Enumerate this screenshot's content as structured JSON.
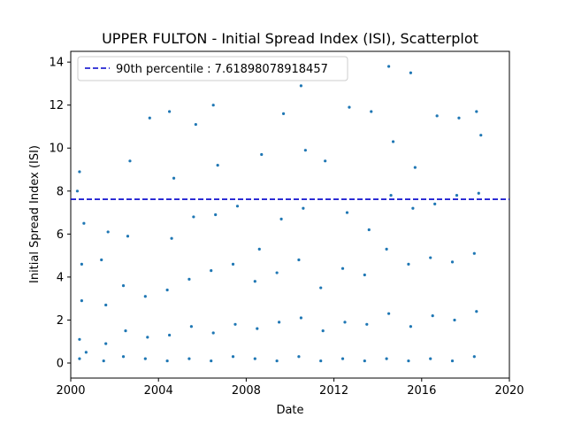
{
  "chart_data": {
    "type": "scatter",
    "title": "UPPER FULTON - Initial Spread Index (ISI), Scatterplot",
    "xlabel": "Date",
    "ylabel": "Initial Spread Index (ISI)",
    "xlim": [
      2000,
      2020
    ],
    "ylim": [
      -0.7,
      14.5
    ],
    "xticks": [
      "2000",
      "2004",
      "2008",
      "2012",
      "2016",
      "2020"
    ],
    "yticks": [
      "0",
      "2",
      "4",
      "6",
      "8",
      "10",
      "12",
      "14"
    ],
    "grid": false,
    "legend_position": "top-left",
    "point_color": "#1f77b4",
    "reference_line": {
      "label": "90th percentile : 7.61898078918457",
      "value": 7.61898078918457,
      "color": "#0000cc",
      "style": "dashed"
    },
    "series": [
      {
        "x": [
          2000.4,
          2000.4,
          2000.5,
          2000.5,
          2000.6,
          2000.3,
          2000.7,
          2000.4,
          2001.5,
          2001.6,
          2001.6,
          2001.4,
          2001.7,
          2002.4,
          2002.5,
          2002.4,
          2002.6,
          2002.7,
          2003.4,
          2003.5,
          2003.4,
          2003.6,
          2004.4,
          2004.5,
          2004.4,
          2004.6,
          2004.7,
          2004.5,
          2005.4,
          2005.5,
          2005.4,
          2005.6,
          2005.7,
          2006.4,
          2006.5,
          2006.4,
          2006.6,
          2006.7,
          2006.5,
          2007.4,
          2007.5,
          2007.4,
          2007.6,
          2008.4,
          2008.5,
          2008.4,
          2008.6,
          2008.7,
          2009.4,
          2009.5,
          2009.4,
          2009.6,
          2009.7,
          2010.4,
          2010.5,
          2010.4,
          2010.6,
          2010.7,
          2010.5,
          2011.4,
          2011.5,
          2011.4,
          2011.6,
          2012.4,
          2012.5,
          2012.4,
          2012.6,
          2012.7,
          2013.4,
          2013.5,
          2013.4,
          2013.6,
          2013.7,
          2014.4,
          2014.5,
          2014.4,
          2014.6,
          2014.7,
          2014.5,
          2015.4,
          2015.5,
          2015.4,
          2015.6,
          2015.7,
          2015.5,
          2016.4,
          2016.5,
          2016.4,
          2016.6,
          2016.7,
          2017.4,
          2017.5,
          2017.4,
          2017.6,
          2017.7,
          2018.4,
          2018.5,
          2018.4,
          2018.6,
          2018.7,
          2018.5
        ],
        "y": [
          0.2,
          1.1,
          2.9,
          4.6,
          6.5,
          8.0,
          0.5,
          8.9,
          0.1,
          0.9,
          2.7,
          4.8,
          6.1,
          0.3,
          1.5,
          3.6,
          5.9,
          9.4,
          0.2,
          1.2,
          3.1,
          11.4,
          0.1,
          1.3,
          3.4,
          5.8,
          8.6,
          11.7,
          0.2,
          1.7,
          3.9,
          6.8,
          11.1,
          0.1,
          1.4,
          4.3,
          6.9,
          9.2,
          12.0,
          0.3,
          1.8,
          4.6,
          7.3,
          0.2,
          1.6,
          3.8,
          5.3,
          9.7,
          0.1,
          1.9,
          4.2,
          6.7,
          11.6,
          0.3,
          2.1,
          4.8,
          7.2,
          9.9,
          12.9,
          0.1,
          1.5,
          3.5,
          9.4,
          0.2,
          1.9,
          4.4,
          7.0,
          11.9,
          0.1,
          1.8,
          4.1,
          6.2,
          11.7,
          0.2,
          2.3,
          5.3,
          7.8,
          10.3,
          13.8,
          0.1,
          1.7,
          4.6,
          7.2,
          9.1,
          13.5,
          0.2,
          2.2,
          4.9,
          7.4,
          11.5,
          0.1,
          2.0,
          4.7,
          7.8,
          11.4,
          0.3,
          2.4,
          5.1,
          7.9,
          10.6,
          11.7
        ]
      }
    ]
  }
}
